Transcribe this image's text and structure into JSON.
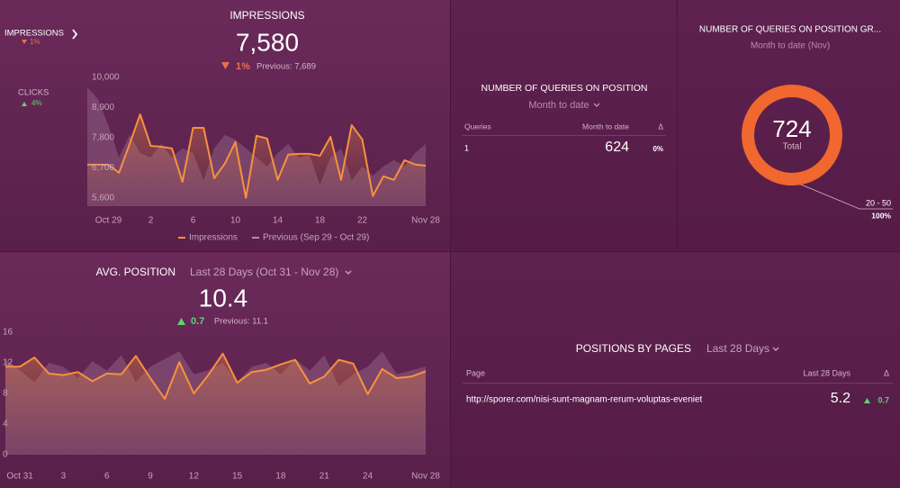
{
  "sidebar": {
    "items": [
      {
        "label": "IMPRESSIONS",
        "change": "1%"
      },
      {
        "label": "CLICKS",
        "change": "4%"
      }
    ]
  },
  "impressions": {
    "title": "IMPRESSIONS",
    "value": "7,580",
    "change": "1%",
    "previous": "Previous: 7,689",
    "chart": {
      "type": "line",
      "categories": [
        null,
        null,
        "Oct 29",
        null,
        null,
        null,
        "2",
        null,
        null,
        null,
        "6",
        null,
        null,
        null,
        "10",
        null,
        null,
        null,
        "14",
        null,
        null,
        null,
        "18",
        null,
        null,
        null,
        "22",
        null,
        null,
        null,
        null,
        null,
        "Nov 28"
      ],
      "series": [
        {
          "name": "Impressions",
          "color": "#f7913d",
          "values": [
            6815,
            6815,
            6815,
            6520,
            7570,
            8650,
            7500,
            7470,
            7410,
            6190,
            8160,
            8160,
            6320,
            6850,
            7640,
            5600,
            7870,
            7770,
            6260,
            7180,
            7210,
            7210,
            7140,
            7830,
            6260,
            8260,
            7740,
            5670,
            6390,
            6260,
            6980,
            6820,
            6780
          ]
        },
        {
          "name": "Previous (Sep 29 - Oct 29)",
          "color": "#9a6a8c",
          "values": [
            9640,
            9210,
            8230,
            7080,
            7900,
            7240,
            7080,
            7570,
            7080,
            7410,
            7240,
            6250,
            7410,
            7900,
            7730,
            7410,
            7080,
            6750,
            7240,
            7570,
            7080,
            7180,
            6090,
            7080,
            7410,
            6250,
            6750,
            6420,
            6750,
            6980,
            6750,
            7240,
            7570
          ]
        }
      ],
      "ylim": [
        5300,
        10000
      ],
      "yticks": [
        {
          "value": 10000,
          "label": "10,000"
        },
        {
          "value": 8900,
          "label": "8,900"
        },
        {
          "value": 7800,
          "label": "7,800"
        },
        {
          "value": 6700,
          "label": "6,700"
        },
        {
          "value": 5600,
          "label": "5,600"
        }
      ],
      "grid": false
    }
  },
  "queries": {
    "title": "NUMBER OF QUERIES ON POSITION",
    "subtitle": "Month to date",
    "table": {
      "columns": [
        "Queries",
        "Month to date",
        "Δ"
      ],
      "rows": [
        [
          1,
          624,
          "0%"
        ]
      ]
    }
  },
  "donut": {
    "title": "NUMBER OF QUERIES ON POSITION GR...",
    "subtitle": "Month to date (Nov)",
    "chart": {
      "type": "pie",
      "total": 724,
      "total_label": "Total",
      "categories": [
        "20 - 50"
      ],
      "values": [
        100
      ],
      "value_labels": [
        "100%"
      ],
      "colors": [
        "#f0672f"
      ]
    }
  },
  "avg_position": {
    "title": "AVG. POSITION",
    "period": "Last 28 Days (Oct 31 - Nov 28)",
    "value": "10.4",
    "change": "0.7",
    "previous": "Previous: 11.1",
    "chart": {
      "type": "line",
      "categories": [
        null,
        "Oct 31",
        null,
        null,
        "3",
        null,
        null,
        "6",
        null,
        null,
        "9",
        null,
        null,
        "12",
        null,
        null,
        "15",
        null,
        null,
        "18",
        null,
        null,
        "21",
        null,
        null,
        "24",
        null,
        null,
        null,
        "Nov 28"
      ],
      "series": [
        {
          "color": "#f7913d",
          "values": [
            11.5,
            11.5,
            12.7,
            10.6,
            10.4,
            10.8,
            9.6,
            10.6,
            10.5,
            12.9,
            10.0,
            7.3,
            12.1,
            8.0,
            10.4,
            13.2,
            9.4,
            10.8,
            11.1,
            11.8,
            12.4,
            9.3,
            10.2,
            12.4,
            11.9,
            7.9,
            11.2,
            10.0,
            10.2,
            10.9
          ]
        },
        {
          "color": "#9a6a8c",
          "values": [
            12.5,
            11,
            9.5,
            12,
            11.5,
            10,
            12.2,
            11,
            13,
            9.5,
            11.5,
            12.5,
            13.5,
            10.5,
            11,
            12,
            9.5,
            11.5,
            12,
            10.5,
            12.5,
            11,
            13,
            9,
            10.5,
            11.5,
            13.5,
            10.5,
            11,
            11.5
          ]
        }
      ],
      "ylim": [
        0,
        16
      ],
      "yticks": [
        0,
        4,
        8,
        12,
        16
      ],
      "grid": false
    }
  },
  "pages": {
    "title": "POSITIONS BY PAGES",
    "period": "Last 28 Days",
    "table": {
      "columns": [
        "Page",
        "Last 28 Days",
        "Δ"
      ],
      "rows": [
        [
          "http://sporer.com/nisi-sunt-magnam-rerum-voluptas-eveniet",
          5.2,
          0.7
        ]
      ]
    }
  }
}
